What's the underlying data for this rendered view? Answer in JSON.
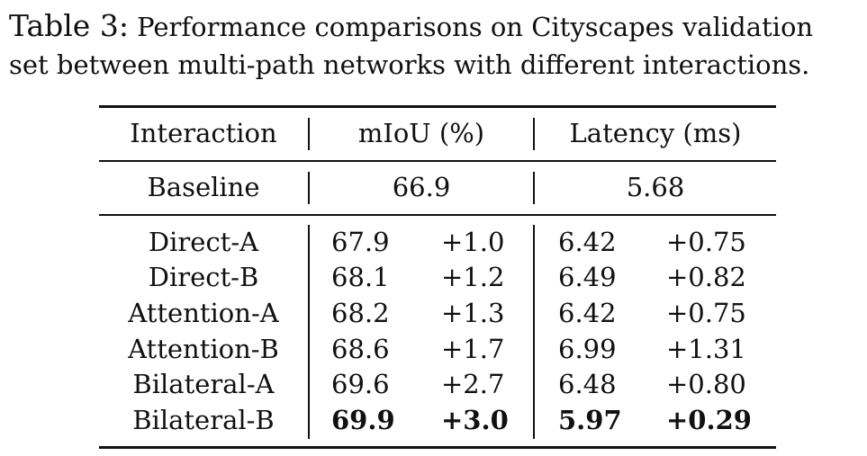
{
  "caption": {
    "label": "Table 3:",
    "line1": "Performance comparisons on Cityscapes validation",
    "line2": "set between multi-path networks with different interactions."
  },
  "table": {
    "headers": {
      "interaction": "Interaction",
      "miou": "mIoU (%)",
      "latency": "Latency (ms)"
    },
    "baseline": {
      "name": "Baseline",
      "miou": "66.9",
      "latency": "5.68"
    },
    "rows": [
      {
        "name": "Direct-A",
        "miou": "67.9",
        "miou_delta": "+1.0",
        "latency": "6.42",
        "latency_delta": "+0.75",
        "bold": false
      },
      {
        "name": "Direct-B",
        "miou": "68.1",
        "miou_delta": "+1.2",
        "latency": "6.49",
        "latency_delta": "+0.82",
        "bold": false
      },
      {
        "name": "Attention-A",
        "miou": "68.2",
        "miou_delta": "+1.3",
        "latency": "6.42",
        "latency_delta": "+0.75",
        "bold": false
      },
      {
        "name": "Attention-B",
        "miou": "68.6",
        "miou_delta": "+1.7",
        "latency": "6.99",
        "latency_delta": "+1.31",
        "bold": false
      },
      {
        "name": "Bilateral-A",
        "miou": "69.6",
        "miou_delta": "+2.7",
        "latency": "6.48",
        "latency_delta": "+0.80",
        "bold": false
      },
      {
        "name": "Bilateral-B",
        "miou": "69.9",
        "miou_delta": "+3.0",
        "latency": "5.97",
        "latency_delta": "+0.29",
        "bold": true
      }
    ]
  }
}
